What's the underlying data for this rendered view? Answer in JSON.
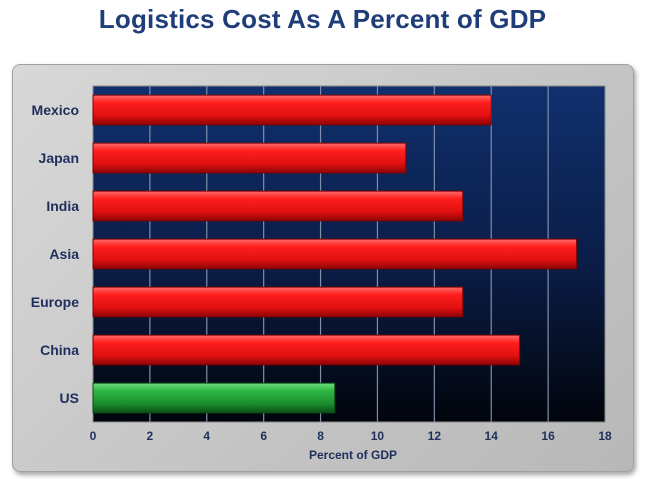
{
  "chart_data": {
    "type": "bar",
    "orientation": "horizontal",
    "title": "Logistics Cost As A Percent of GDP",
    "xlabel": "Percent of GDP",
    "ylabel": "",
    "xlim": [
      0,
      18
    ],
    "xticks": [
      "0",
      "2",
      "4",
      "6",
      "8",
      "10",
      "12",
      "14",
      "16",
      "18"
    ],
    "grid": true,
    "categories": [
      "Mexico",
      "Japan",
      "India",
      "Asia",
      "Europe",
      "China",
      "US"
    ],
    "values": [
      14,
      11,
      13,
      17,
      13,
      15,
      8.5
    ],
    "colors": [
      "#e8141a",
      "#e8141a",
      "#e8141a",
      "#e8141a",
      "#e8141a",
      "#e8141a",
      "#1e8c2c"
    ]
  },
  "colors": {
    "title": "#1f3d78",
    "plot_bg_top": "#0e2a66",
    "plot_bg_bottom": "#02050d",
    "grid": "#7f8fa8",
    "panel": "#cccccc"
  }
}
